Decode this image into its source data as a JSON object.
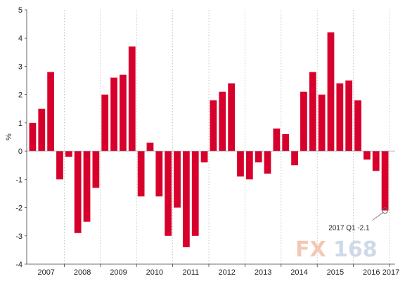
{
  "chart_data": {
    "type": "bar",
    "ylabel": "%",
    "ylim": [
      -4,
      5
    ],
    "yticks": [
      5,
      4,
      3,
      2,
      1,
      0,
      -1,
      -2,
      -3,
      -4
    ],
    "grid": {
      "vertical": true,
      "horizontal": false
    },
    "years": [
      "2007",
      "2008",
      "2009",
      "2010",
      "2011",
      "2012",
      "2013",
      "2014",
      "2015",
      "2016",
      "2017"
    ],
    "year_boundaries": [
      2008,
      2009,
      2010,
      2011,
      2012,
      2013,
      2014,
      2015,
      2016,
      2017
    ],
    "bar_color": "#d7002c",
    "series": [
      {
        "values": [
          1.0,
          1.5,
          2.8,
          -1.0,
          -0.2,
          -2.9,
          -2.5,
          -1.3,
          2.0,
          2.6,
          2.7,
          3.7,
          -1.6,
          0.3,
          -1.6,
          -3.0,
          -2.0,
          -3.4,
          -3.0,
          -0.4,
          1.8,
          2.1,
          2.4,
          -0.9,
          -1.0,
          -0.4,
          -0.8,
          0.8,
          0.6,
          -0.5,
          2.1,
          2.8,
          2.0,
          4.2,
          2.4,
          2.5,
          1.8,
          -0.3,
          -0.7,
          -2.1
        ]
      }
    ],
    "annotation": {
      "text": "2017 Q1 -2.1",
      "index": 39,
      "value": -2.1
    }
  },
  "watermark": {
    "part1": "FX",
    "part2": "168"
  }
}
